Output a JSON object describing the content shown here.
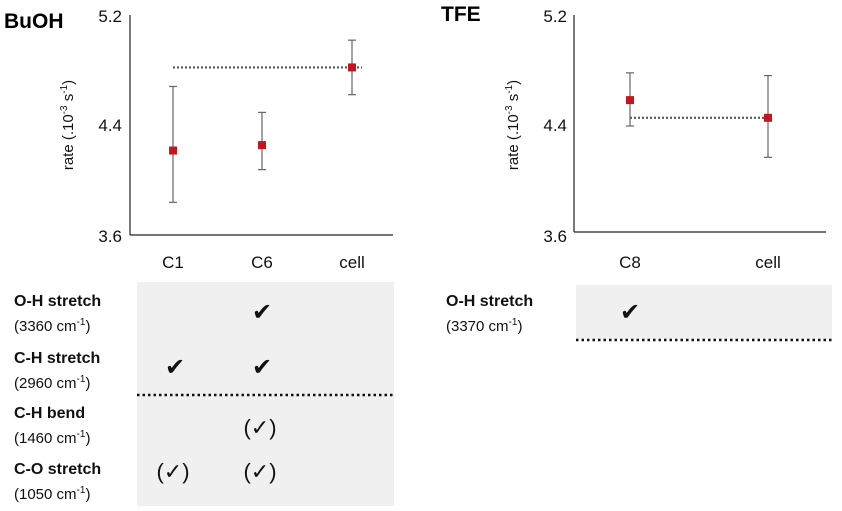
{
  "colors": {
    "marker": "#c8141e",
    "errorbar": "#666666",
    "reference_line": "#555555",
    "axis": "#222222",
    "table_fill": "#f0f0f0",
    "separator": "#111111"
  },
  "chart_data": [
    {
      "type": "scatter",
      "title": "BuOH",
      "ylabel": "rate (.10-3 s-1)",
      "ylabel_prefix": "rate (.10",
      "ylabel_exp1": "-3",
      "ylabel_mid": " s",
      "ylabel_exp2": "-1",
      "ylabel_suffix": ")",
      "ylim": [
        3.6,
        5.2
      ],
      "yticks": [
        "5.2",
        "4.4",
        "3.6"
      ],
      "categories": [
        "C1",
        "C6",
        "cell"
      ],
      "values": [
        4.22,
        4.26,
        4.83
      ],
      "error_low": [
        3.84,
        4.08,
        4.63
      ],
      "error_high": [
        4.69,
        4.5,
        5.03
      ],
      "reference_value": 4.83,
      "reference_from": "C1",
      "grid": false,
      "vibrations": [
        {
          "label": "O-H stretch",
          "wavenumber": "3360",
          "marks": [
            "",
            "✔",
            ""
          ]
        },
        {
          "label": "C-H stretch",
          "wavenumber": "2960",
          "marks": [
            "✔",
            "✔",
            ""
          ]
        },
        {
          "label": "C-H bend",
          "wavenumber": "1460",
          "marks": [
            "",
            "(✓)",
            ""
          ]
        },
        {
          "label": "C-O stretch",
          "wavenumber": "1050",
          "marks": [
            "(✓)",
            "(✓)",
            ""
          ]
        }
      ]
    },
    {
      "type": "scatter",
      "title": "TFE",
      "ylabel": "rate (.10-3 s-1)",
      "ylabel_prefix": "rate (.10",
      "ylabel_exp1": "-3",
      "ylabel_mid": " s",
      "ylabel_exp2": "-1",
      "ylabel_suffix": ")",
      "ylim": [
        3.6,
        5.2
      ],
      "yticks": [
        "5.2",
        "4.4",
        "3.6"
      ],
      "categories": [
        "C8",
        "cell"
      ],
      "values": [
        4.59,
        4.46
      ],
      "error_low": [
        4.4,
        4.17
      ],
      "error_high": [
        4.79,
        4.77
      ],
      "reference_value": 4.46,
      "reference_from": "C8",
      "grid": false,
      "vibrations": [
        {
          "label": "O-H stretch",
          "wavenumber": "3370",
          "marks": [
            "✔",
            ""
          ]
        }
      ]
    }
  ],
  "unit_prefix": "cm",
  "unit_exponent": "-1"
}
